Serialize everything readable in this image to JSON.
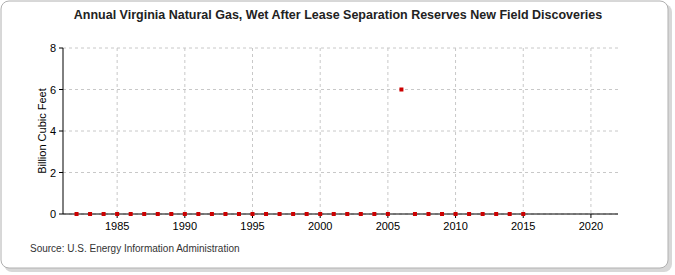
{
  "chart_data": {
    "type": "scatter",
    "title": "Annual Virginia Natural Gas, Wet After Lease Separation Reserves New Field Discoveries",
    "y_label": "Billion Cubic Feet",
    "source": "Source: U.S. Energy Information Administration",
    "x": [
      1982,
      1983,
      1984,
      1985,
      1986,
      1987,
      1988,
      1989,
      1990,
      1991,
      1992,
      1993,
      1994,
      1995,
      1996,
      1997,
      1998,
      1999,
      2000,
      2001,
      2002,
      2003,
      2004,
      2005,
      2006,
      2007,
      2008,
      2009,
      2010,
      2011,
      2012,
      2013,
      2014,
      2015
    ],
    "values": [
      0,
      0,
      0,
      0,
      0,
      0,
      0,
      0,
      0,
      0,
      0,
      0,
      0,
      0,
      0,
      0,
      0,
      0,
      0,
      0,
      0,
      0,
      0,
      0,
      6,
      0,
      0,
      0,
      0,
      0,
      0,
      0,
      0,
      0
    ],
    "color": "#cc0000",
    "marker": "square",
    "xlim": [
      1981,
      2022
    ],
    "ylim": [
      0,
      8
    ],
    "xticks": [
      1985,
      1990,
      1995,
      2000,
      2005,
      2010,
      2015,
      2020
    ],
    "yticks": [
      0,
      2,
      4,
      6,
      8
    ],
    "grid": true
  }
}
